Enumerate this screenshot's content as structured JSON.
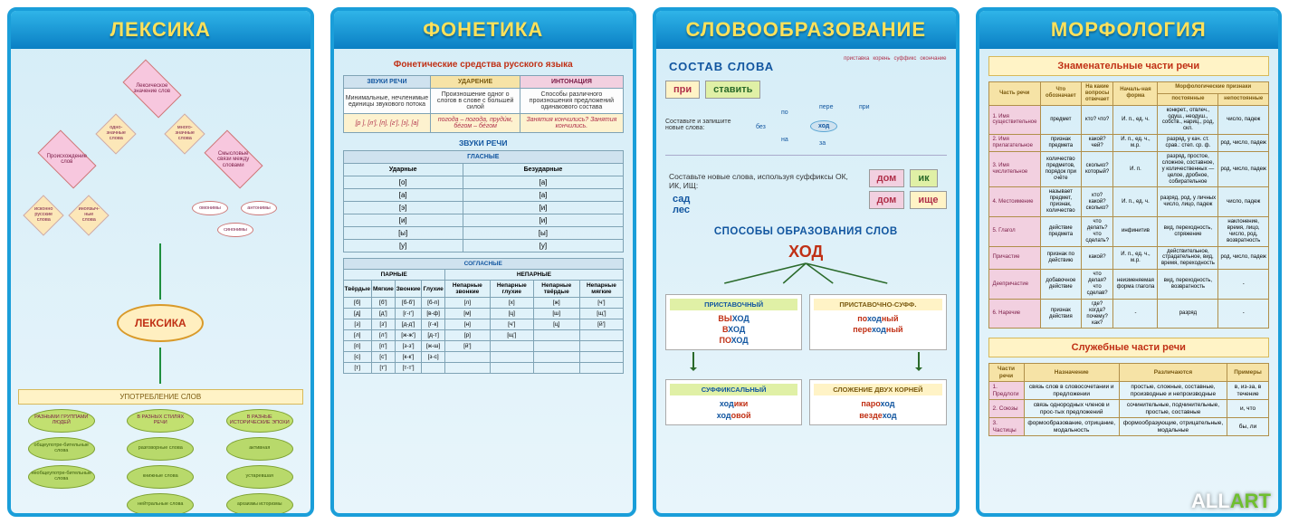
{
  "watermark_a": "ALL",
  "watermark_b": "ART",
  "panels": {
    "lexika": {
      "title": "ЛЕКСИКА",
      "center": "ЛЕКСИКА",
      "nodes": {
        "top": "Лексическое значение слов",
        "left": "Происхождение слов",
        "right": "Смысловые связи между словами",
        "s1": "одно-значные слова",
        "s2": "много-значные слова",
        "s3": "исконно русские слова",
        "s4": "иноязыч-ные слова",
        "o1": "омонимы",
        "o2": "антонимы",
        "o3": "синонимы"
      },
      "usage": "УПОТРЕБЛЕНИЕ СЛОВ",
      "cols": [
        {
          "h": "РАЗНЫМИ ГРУППАМИ ЛЮДЕЙ",
          "items": [
            "общеупотре-бительные слова",
            "необщеупотре-бительные слова"
          ]
        },
        {
          "h": "В РАЗНЫХ СТИЛЯХ РЕЧИ",
          "items": [
            "разговорные слова",
            "книжные слова",
            "нейтральные слова"
          ]
        },
        {
          "h": "В РАЗНЫЕ ИСТОРИЧЕСКИЕ ЭПОХИ",
          "items": [
            "активная",
            "устаревшая",
            "архаизмы         историзмы"
          ]
        }
      ]
    },
    "fonetika": {
      "title": "ФОНЕТИКА",
      "sec1": "Фонетические средства русского языка",
      "h1": "ЗВУКИ РЕЧИ",
      "h2": "УДАРЕНИЕ",
      "h3": "ИНТОНАЦИЯ",
      "r1a": "Минимальные, нечленимые единицы звукового потока",
      "r1b": "Произношение одног о слогов в слове с большей силой",
      "r1c": "Способы различного произношения предложений одинакового состава",
      "r2a": "[р ], [л'], [п], [г'], [з], [а]",
      "r2b": "погода – погода, пруди́м, бе́гом – бе́гом",
      "r2c": "Занятия кончились? Занятия кончились.",
      "sub1": "ЗВУКИ РЕЧИ",
      "vowels": {
        "h": "ГЛАСНЫЕ",
        "c1": "Ударные",
        "c2": "Безударные",
        "rows": [
          [
            "[о]",
            "[а]"
          ],
          [
            "[а]",
            "[а]"
          ],
          [
            "[э]",
            "[и]"
          ],
          [
            "[и]",
            "[и]"
          ],
          [
            "[ы]",
            "[ы]"
          ],
          [
            "[у]",
            "[у]"
          ]
        ]
      },
      "cons": {
        "h": "СОГЛАСНЫЕ",
        "p": "ПАРНЫЕ",
        "np": "НЕПАРНЫЕ",
        "c": [
          "Твёрдые",
          "Мягкие",
          "Звонкие",
          "Глухие",
          "Непарные звонкие",
          "Непарные глухие",
          "Непарные твёрдые",
          "Непарные мягкие"
        ],
        "rows": [
          [
            "[б]",
            "[б']",
            "[б-б']",
            "[б-п]",
            "[л]",
            "[х]",
            "[ж]",
            "[ч']"
          ],
          [
            "[д]",
            "[д']",
            "[г-г']",
            "[в-ф]",
            "[м]",
            "[ц]",
            "[ш]",
            "[щ']"
          ],
          [
            "[з]",
            "[з']",
            "[д-д']",
            "[г-к]",
            "[н]",
            "[ч']",
            "[ц]",
            "[й']"
          ],
          [
            "[л]",
            "[л']",
            "[ж-ж']",
            "[д-т]",
            "[р]",
            "[щ']",
            "",
            ""
          ],
          [
            "[п]",
            "[п']",
            "[з-з']",
            "[ж-ш]",
            "[й']",
            "",
            "",
            ""
          ],
          [
            "[с]",
            "[с']",
            "[к-к']",
            "[з-с]",
            "",
            "",
            "",
            ""
          ],
          [
            "[т]",
            "[т']",
            "[т-т']",
            "",
            "",
            "",
            "",
            ""
          ]
        ]
      }
    },
    "slovo": {
      "title": "СЛОВООБРАЗОВАНИЕ",
      "h1": "СОСТАВ СЛОВА",
      "labels": [
        "приставка",
        "корень",
        "суффикс",
        "окончание",
        "основа"
      ],
      "pri": "при",
      "stavit": "ставить",
      "note1": "Составьте и запишите новые слова:",
      "roots": {
        "bez": "без",
        "po": "по",
        "na": "на",
        "pere": "пере",
        "za": "за",
        "hod": "ход",
        "pri2": "при"
      },
      "prompt": "Составьте новые слова, используя суффиксы ОК, ИК, ИЩ:",
      "sad": "сад",
      "les": "лес",
      "dom": "дом",
      "ik": "ик",
      "ishe": "ище",
      "h2": "СПОСОБЫ ОБРАЗОВАНИЯ СЛОВ",
      "hod": "ХОД",
      "cells": [
        {
          "h": "ПРИСТАВОЧНЫЙ",
          "lines": [
            [
              "ВЫ",
              "ХОД"
            ],
            [
              "В",
              "ХОД"
            ],
            [
              "ПО",
              "ХОД"
            ]
          ]
        },
        {
          "h": "ПРИСТАВОЧНО-СУФФ.",
          "lines": [
            [
              "по",
              "ход",
              "ный"
            ],
            [
              "пере",
              "ход",
              "ный"
            ]
          ]
        },
        {
          "h": "СУФФИКСАЛЬНЫЙ",
          "lines": [
            [
              "ход",
              "ики"
            ],
            [
              "ход",
              "овой"
            ]
          ]
        },
        {
          "h": "СЛОЖЕНИЕ ДВУХ КОРНЕЙ",
          "lines": [
            [
              "паро",
              "ход"
            ],
            [
              "везде",
              "ход"
            ]
          ]
        }
      ]
    },
    "morph": {
      "title": "МОРФОЛОГИЯ",
      "sec1": "Знаменательные части речи",
      "thead": [
        "Часть речи",
        "Что обозначает",
        "На какие вопросы отвечает",
        "Началь-ная форма",
        "Морфологические признаки"
      ],
      "sub": [
        "постоянные",
        "непостоянные"
      ],
      "rows": [
        [
          "1. Имя существительное",
          "предмет",
          "кто? что?",
          "И. п., ед. ч.",
          "конкрет., отвлеч., одуш., неодуш., собств., нариц., род, скл.",
          "число, падеж"
        ],
        [
          "2. Имя прилагательное",
          "признак предмета",
          "какой? чей?",
          "И. п., ед. ч., м.р.",
          "разряд, у кач. ст. срав.: степ. ср. ф.",
          "род, число, падеж"
        ],
        [
          "3. Имя числительное",
          "количество предметов, порядок при счёте",
          "сколько? который?",
          "И. п.",
          "разряд, простое, сложное, составное, у количественных — целое, дробное, собирательное",
          "род, число, падеж"
        ],
        [
          "4. Местоимение",
          "называет предмет, признак, количество",
          "кто? какой? сколько?",
          "И. п., ед. ч.",
          "разряд, род, у личных число, лицо, падеж",
          "число, падеж"
        ],
        [
          "5. Глагол",
          "действие предмета",
          "что делать? что сделать?",
          "инфинитив",
          "вид, переходность, спряжение",
          "наклонение, время, лицо, число, род, возвратность"
        ],
        [
          "Причастие",
          "признак по действию",
          "какой?",
          "И. п., ед. ч., м.р.",
          "действительное, страдательное, вид, время, переходность",
          "род, число, падеж"
        ],
        [
          "Деепричастие",
          "добавочное действие",
          "что делая? что сделав?",
          "неизменяемая форма глагола",
          "вид, переходность, возвратность",
          "-"
        ],
        [
          "6. Наречие",
          "признак действия",
          "где? когда? почему? как?",
          "-",
          "разряд",
          "-"
        ]
      ],
      "side": "Формы глагола",
      "sec2": "Служебные части речи",
      "t2head": [
        "Части речи",
        "Назначение",
        "Различаются",
        "Примеры"
      ],
      "t2rows": [
        [
          "1. Предлоги",
          "связь слов в словосочетании и предложении",
          "простые, сложные, составные, производные и непроизводные",
          "в, из-за, в течение"
        ],
        [
          "2. Союзы",
          "связь однородных членов и прос-тых предложений",
          "сочинительные, подчинительные, простые, составные",
          "и, что"
        ],
        [
          "3. Частицы",
          "формообразование, отрицание, модальность",
          "формообразующие, отрицательные, модальные",
          "бы, ли"
        ]
      ]
    }
  }
}
